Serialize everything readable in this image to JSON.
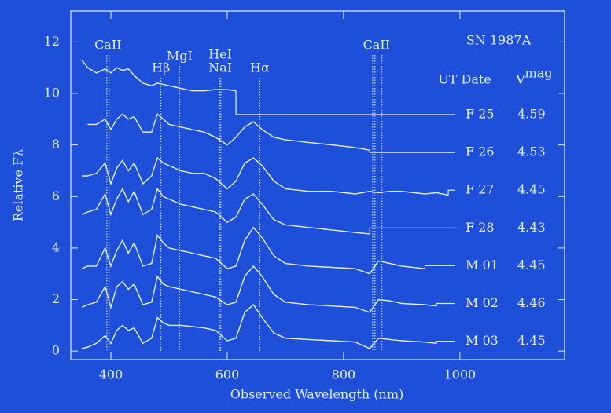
{
  "chart_data": {
    "type": "line",
    "title": "SN 1987A",
    "xlabel": "Observed Wavelength (nm)",
    "ylabel": "Relative Fλ",
    "table_headers": [
      "UT Date",
      "V"
    ],
    "magnitude_superscript": "mag",
    "x": [
      350,
      360,
      375,
      390,
      400,
      410,
      420,
      430,
      440,
      455,
      470,
      480,
      490,
      500,
      520,
      540,
      560,
      580,
      600,
      615,
      630,
      645,
      660,
      680,
      700,
      740,
      780,
      820,
      845,
      860,
      880,
      900,
      940,
      960,
      980
    ],
    "series": [
      {
        "name": "F 25",
        "magnitude": "4.59",
        "color": "#e6eeff",
        "values": [
          11.3,
          11.0,
          10.8,
          10.95,
          10.8,
          11.0,
          10.9,
          10.95,
          10.7,
          10.4,
          10.3,
          10.4,
          10.35,
          10.3,
          10.2,
          10.1,
          10.1,
          10.15,
          10.15,
          10.1,
          null,
          null,
          null,
          null,
          null,
          null,
          null,
          null,
          null,
          null,
          null,
          null,
          null,
          null,
          null
        ]
      },
      {
        "name": "F 26",
        "magnitude": "4.53",
        "color": "#e6eeff",
        "values": [
          null,
          8.8,
          8.8,
          9.0,
          8.6,
          9.0,
          9.2,
          9.0,
          9.1,
          8.5,
          8.5,
          9.2,
          9.0,
          8.8,
          8.7,
          8.6,
          8.5,
          8.3,
          8.0,
          8.3,
          8.7,
          8.9,
          8.6,
          8.3,
          8.2,
          8.1,
          8.0,
          7.9,
          7.8,
          null,
          null,
          null,
          null,
          null,
          null
        ]
      },
      {
        "name": "F 27",
        "magnitude": "4.45",
        "color": "#e6eeff",
        "values": [
          6.8,
          6.8,
          6.9,
          7.3,
          6.5,
          7.1,
          7.4,
          7.0,
          7.3,
          6.5,
          6.8,
          7.5,
          7.3,
          7.2,
          7.0,
          6.9,
          6.9,
          6.7,
          6.3,
          6.6,
          7.3,
          7.5,
          7.2,
          6.6,
          6.3,
          6.2,
          6.2,
          6.1,
          6.2,
          6.15,
          6.2,
          6.2,
          6.1,
          6.15,
          6.05
        ]
      },
      {
        "name": "F 28",
        "magnitude": "4.43",
        "color": "#e6eeff",
        "values": [
          5.3,
          5.4,
          5.5,
          6.1,
          5.3,
          5.9,
          6.3,
          5.8,
          6.2,
          5.3,
          5.5,
          6.3,
          6.0,
          5.9,
          5.7,
          5.6,
          5.5,
          5.4,
          5.0,
          5.2,
          5.9,
          6.1,
          5.7,
          5.1,
          4.9,
          4.8,
          4.7,
          4.6,
          4.55,
          null,
          null,
          null,
          null,
          null,
          null
        ]
      },
      {
        "name": "M 01",
        "magnitude": "4.45",
        "color": "#e6eeff",
        "values": [
          3.2,
          3.3,
          3.3,
          4.0,
          3.3,
          3.9,
          4.3,
          3.8,
          4.2,
          3.3,
          3.4,
          4.5,
          4.2,
          4.0,
          3.9,
          3.8,
          3.7,
          3.6,
          3.2,
          3.3,
          4.3,
          4.8,
          4.4,
          3.7,
          3.4,
          3.3,
          3.25,
          3.2,
          3.0,
          3.5,
          3.4,
          3.3,
          3.2,
          null,
          null
        ]
      },
      {
        "name": "M 02",
        "magnitude": "4.46",
        "color": "#e6eeff",
        "values": [
          1.7,
          1.8,
          1.9,
          2.5,
          1.7,
          2.5,
          2.7,
          2.4,
          2.6,
          1.8,
          1.9,
          2.9,
          2.6,
          2.5,
          2.4,
          2.3,
          2.2,
          2.1,
          1.8,
          1.9,
          2.9,
          3.3,
          2.9,
          2.2,
          1.9,
          1.8,
          1.75,
          1.7,
          1.5,
          2.0,
          1.95,
          1.85,
          1.8,
          1.75,
          null
        ]
      },
      {
        "name": "M 03",
        "magnitude": "4.45",
        "color": "#e6eeff",
        "values": [
          0.1,
          0.15,
          0.3,
          0.6,
          0.3,
          0.8,
          1.0,
          0.8,
          0.9,
          0.3,
          0.5,
          1.3,
          1.1,
          1.0,
          1.0,
          0.95,
          0.9,
          0.8,
          0.4,
          0.5,
          1.5,
          1.8,
          1.3,
          0.7,
          0.5,
          0.45,
          0.4,
          0.35,
          0.1,
          0.5,
          0.45,
          0.4,
          0.35,
          0.3,
          null
        ]
      }
    ],
    "spectral_lines": [
      {
        "labels": [
          "CaII"
        ],
        "wavelengths": [
          393,
          397
        ]
      },
      {
        "labels": [
          "Hβ"
        ],
        "wavelengths": [
          486
        ]
      },
      {
        "labels": [
          "MgI"
        ],
        "wavelengths": [
          518
        ]
      },
      {
        "labels": [
          "HeI",
          "NaI"
        ],
        "wavelengths": [
          587,
          589
        ]
      },
      {
        "labels": [
          "Hα"
        ],
        "wavelengths": [
          656
        ]
      },
      {
        "labels": [
          "CaII"
        ],
        "wavelengths": [
          850,
          854,
          866
        ]
      }
    ],
    "xlim": [
      331,
      1180
    ],
    "ylim": [
      -0.33,
      13.2
    ],
    "xticks": [
      400,
      600,
      800,
      1000
    ],
    "yticks": [
      0,
      2,
      4,
      6,
      8,
      10,
      12
    ]
  }
}
